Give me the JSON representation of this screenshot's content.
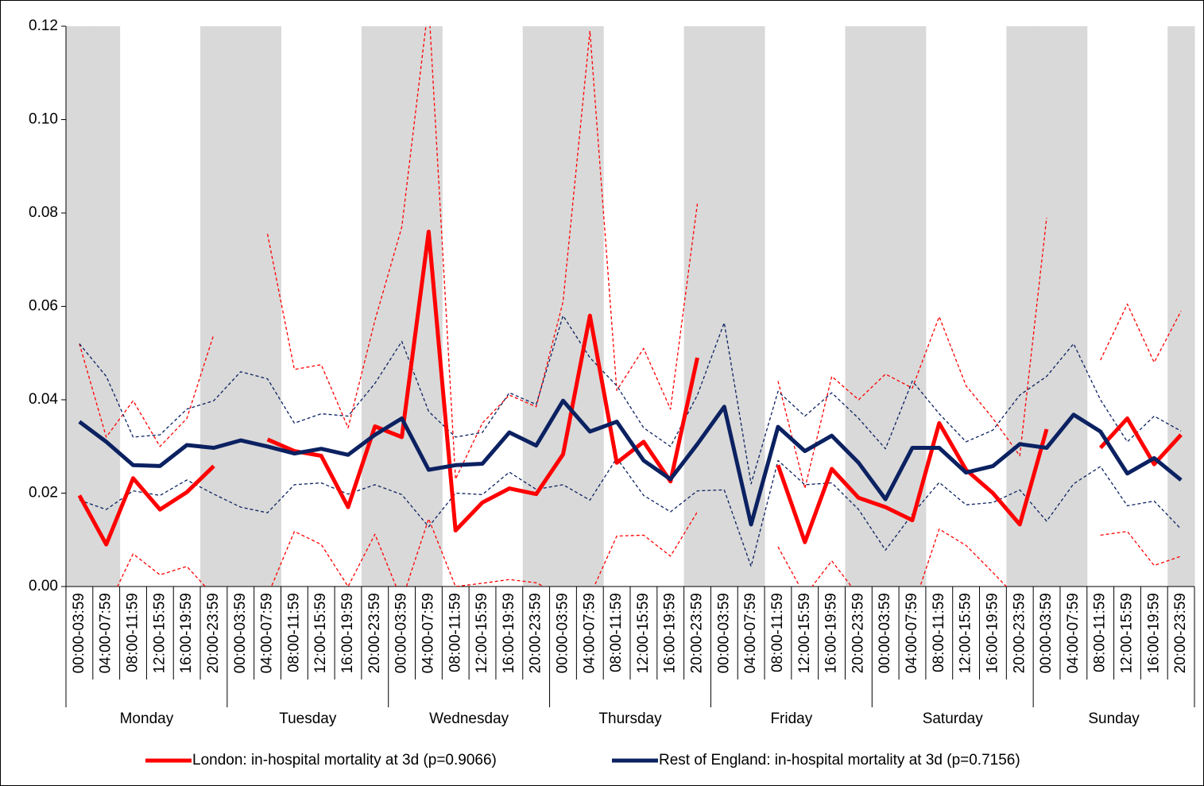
{
  "chart_data": {
    "type": "line",
    "categories": [
      "00:00-03:59",
      "04:00-07:59",
      "08:00-11:59",
      "12:00-15:59",
      "16:00-19:59",
      "20:00-23:59",
      "00:00-03:59",
      "04:00-07:59",
      "08:00-11:59",
      "12:00-15:59",
      "16:00-19:59",
      "20:00-23:59",
      "00:00-03:59",
      "04:00-07:59",
      "08:00-11:59",
      "12:00-15:59",
      "16:00-19:59",
      "20:00-23:59",
      "00:00-03:59",
      "04:00-07:59",
      "08:00-11:59",
      "12:00-15:59",
      "16:00-19:59",
      "20:00-23:59",
      "00:00-03:59",
      "04:00-07:59",
      "08:00-11:59",
      "12:00-15:59",
      "16:00-19:59",
      "20:00-23:59",
      "00:00-03:59",
      "04:00-07:59",
      "08:00-11:59",
      "12:00-15:59",
      "16:00-19:59",
      "20:00-23:59",
      "00:00-03:59",
      "04:00-07:59",
      "08:00-11:59",
      "12:00-15:59",
      "16:00-19:59",
      "20:00-23:59"
    ],
    "groups": [
      "Monday",
      "Tuesday",
      "Wednesday",
      "Thursday",
      "Friday",
      "Saturday",
      "Sunday"
    ],
    "shaded_slots": [
      0,
      1,
      5
    ],
    "shade_color": "#d9d9d9",
    "ylim": [
      0,
      0.12
    ],
    "yticks": [
      {
        "value": 0,
        "label": "0.00"
      },
      {
        "value": 0.02,
        "label": "0.02"
      },
      {
        "value": 0.04,
        "label": "0.04"
      },
      {
        "value": 0.06,
        "label": "0.06"
      },
      {
        "value": 0.08,
        "label": "0.08"
      },
      {
        "value": 0.1,
        "label": "0.10"
      },
      {
        "value": 0.12,
        "label": "0.12"
      }
    ],
    "legend": "bottom",
    "series": [
      {
        "name": "London: in-hospital mortality at 3d (p=0.9066)",
        "color": "#ff0000",
        "values": [
          0.0195,
          0.009,
          0.0232,
          0.0165,
          0.0202,
          0.0258,
          null,
          0.0315,
          0.029,
          0.028,
          0.017,
          0.0343,
          0.032,
          0.076,
          0.012,
          0.018,
          0.021,
          0.0198,
          0.0283,
          0.058,
          0.0265,
          0.031,
          0.0225,
          0.049,
          null,
          null,
          0.026,
          0.0095,
          0.0252,
          0.019,
          0.017,
          0.0142,
          0.035,
          0.025,
          0.02,
          0.0133,
          0.0337,
          null,
          0.0297,
          0.036,
          0.0262,
          0.0325
        ],
        "upper": [
          0.052,
          0.032,
          0.0398,
          0.03,
          0.036,
          0.054,
          null,
          0.0755,
          0.0465,
          0.0475,
          0.034,
          0.057,
          0.077,
          0.125,
          0.023,
          0.035,
          0.041,
          0.0385,
          0.061,
          0.119,
          0.042,
          0.051,
          0.038,
          0.082,
          null,
          null,
          0.044,
          0.021,
          0.045,
          0.04,
          0.0455,
          0.0425,
          0.0578,
          0.043,
          0.036,
          0.028,
          0.079,
          null,
          0.0485,
          0.0605,
          0.048,
          0.059
        ],
        "lower": [
          0.0,
          -0.005,
          0.007,
          0.0025,
          0.0043,
          -0.002,
          null,
          -0.002,
          0.0118,
          0.009,
          0.0,
          0.0112,
          -0.003,
          0.0145,
          0.0,
          0.0007,
          0.0015,
          0.0008,
          -0.002,
          -0.002,
          0.0108,
          0.011,
          0.0065,
          0.016,
          null,
          null,
          0.0085,
          -0.002,
          0.0055,
          -0.002,
          -0.005,
          -0.005,
          0.0123,
          0.0088,
          0.003,
          -0.003,
          -0.01,
          null,
          0.011,
          0.0118,
          0.0045,
          0.0065
        ]
      },
      {
        "name": "Rest of England: in-hospital mortality at 3d (p=0.7156)",
        "color": "#0b2161",
        "values": [
          0.0353,
          0.031,
          0.026,
          0.0258,
          0.0303,
          0.0297,
          0.0313,
          0.03,
          0.0285,
          0.0295,
          0.0282,
          0.0325,
          0.036,
          0.025,
          0.026,
          0.0263,
          0.033,
          0.0302,
          0.0398,
          0.0332,
          0.0353,
          0.027,
          0.023,
          0.0305,
          0.0385,
          0.0133,
          0.0342,
          0.029,
          0.0323,
          0.0265,
          0.0187,
          0.0297,
          0.0297,
          0.0244,
          0.0258,
          0.0305,
          0.0297,
          0.0368,
          0.0332,
          0.0242,
          0.0275,
          0.0228
        ],
        "upper": [
          0.052,
          0.045,
          0.032,
          0.0325,
          0.038,
          0.0398,
          0.046,
          0.0445,
          0.035,
          0.037,
          0.0365,
          0.0435,
          0.0525,
          0.0375,
          0.032,
          0.033,
          0.0415,
          0.039,
          0.058,
          0.049,
          0.043,
          0.034,
          0.03,
          0.041,
          0.0565,
          0.022,
          0.0418,
          0.0365,
          0.0415,
          0.036,
          0.0295,
          0.044,
          0.037,
          0.031,
          0.0335,
          0.041,
          0.045,
          0.052,
          0.04,
          0.031,
          0.0365,
          0.0333
        ],
        "lower": [
          0.0185,
          0.0165,
          0.0205,
          0.0195,
          0.0228,
          0.0198,
          0.017,
          0.0158,
          0.0218,
          0.0222,
          0.0198,
          0.0218,
          0.0197,
          0.0128,
          0.02,
          0.0197,
          0.0245,
          0.0208,
          0.0218,
          0.0185,
          0.0275,
          0.0195,
          0.016,
          0.0205,
          0.0207,
          0.0043,
          0.027,
          0.0218,
          0.0222,
          0.0165,
          0.0078,
          0.0155,
          0.0223,
          0.0175,
          0.018,
          0.0207,
          0.014,
          0.022,
          0.0257,
          0.0173,
          0.0183,
          0.0123
        ]
      }
    ]
  }
}
